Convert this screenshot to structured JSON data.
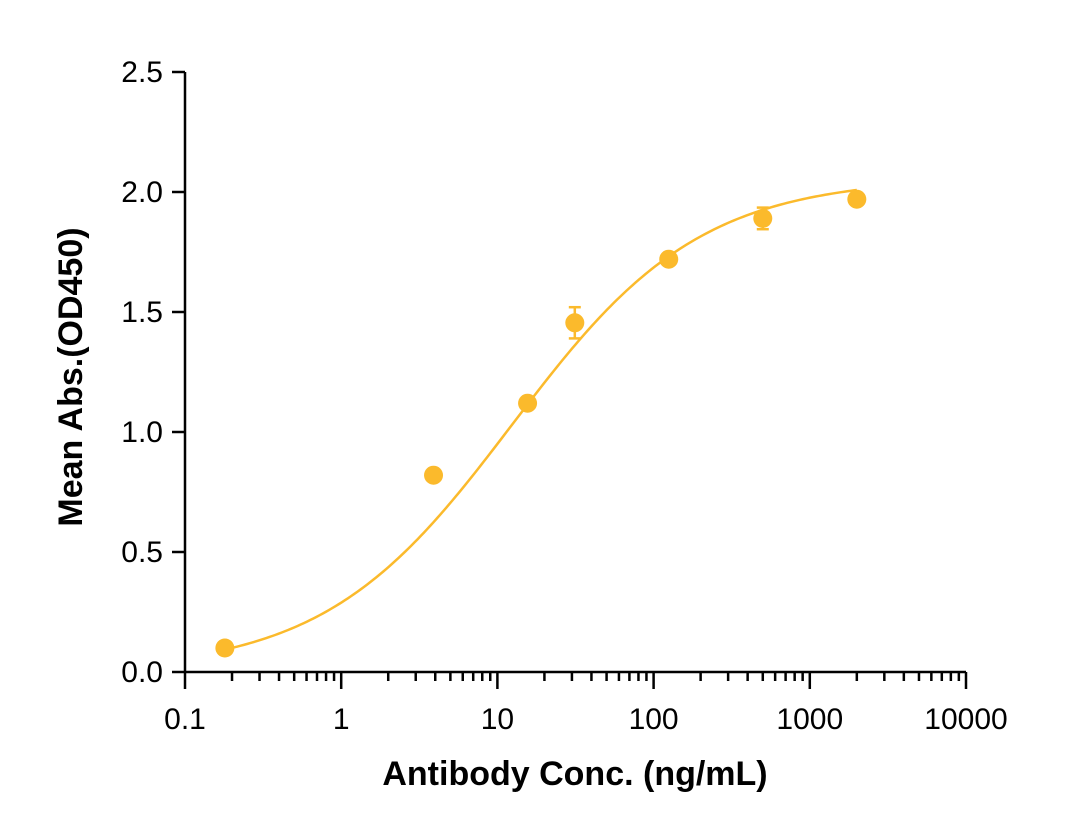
{
  "chart_data": {
    "type": "scatter",
    "xlabel": "Antibody Conc. (ng/mL)",
    "ylabel": "Mean Abs.(OD450)",
    "x_scale": "log",
    "xlim": [
      0.1,
      10000
    ],
    "ylim": [
      0.0,
      2.5
    ],
    "x_ticks": [
      0.1,
      1,
      10,
      100,
      1000,
      10000
    ],
    "x_tick_labels": [
      "0.1",
      "1",
      "10",
      "100",
      "1000",
      "10000"
    ],
    "y_ticks": [
      0.0,
      0.5,
      1.0,
      1.5,
      2.0,
      2.5
    ],
    "y_tick_labels": [
      "0.0",
      "0.5",
      "1.0",
      "1.5",
      "2.0",
      "2.5"
    ],
    "grid": false,
    "legend": "none",
    "color": "#FBBA2C",
    "series": [
      {
        "points": [
          {
            "x": 0.18,
            "y": 0.1,
            "err": 0.01
          },
          {
            "x": 3.9,
            "y": 0.82,
            "err": 0.01
          },
          {
            "x": 15.6,
            "y": 1.12,
            "err": 0.01
          },
          {
            "x": 31.3,
            "y": 1.455,
            "err": 0.065
          },
          {
            "x": 125,
            "y": 1.72,
            "err": 0.01
          },
          {
            "x": 500,
            "y": 1.89,
            "err": 0.045
          },
          {
            "x": 2000,
            "y": 1.97,
            "err": 0.01
          }
        ],
        "fit": {
          "model": "4PL",
          "bottom": 0.0,
          "top": 2.06,
          "ec50": 12.4,
          "hill": 0.72,
          "x_range": [
            0.18,
            2000
          ]
        }
      }
    ]
  }
}
